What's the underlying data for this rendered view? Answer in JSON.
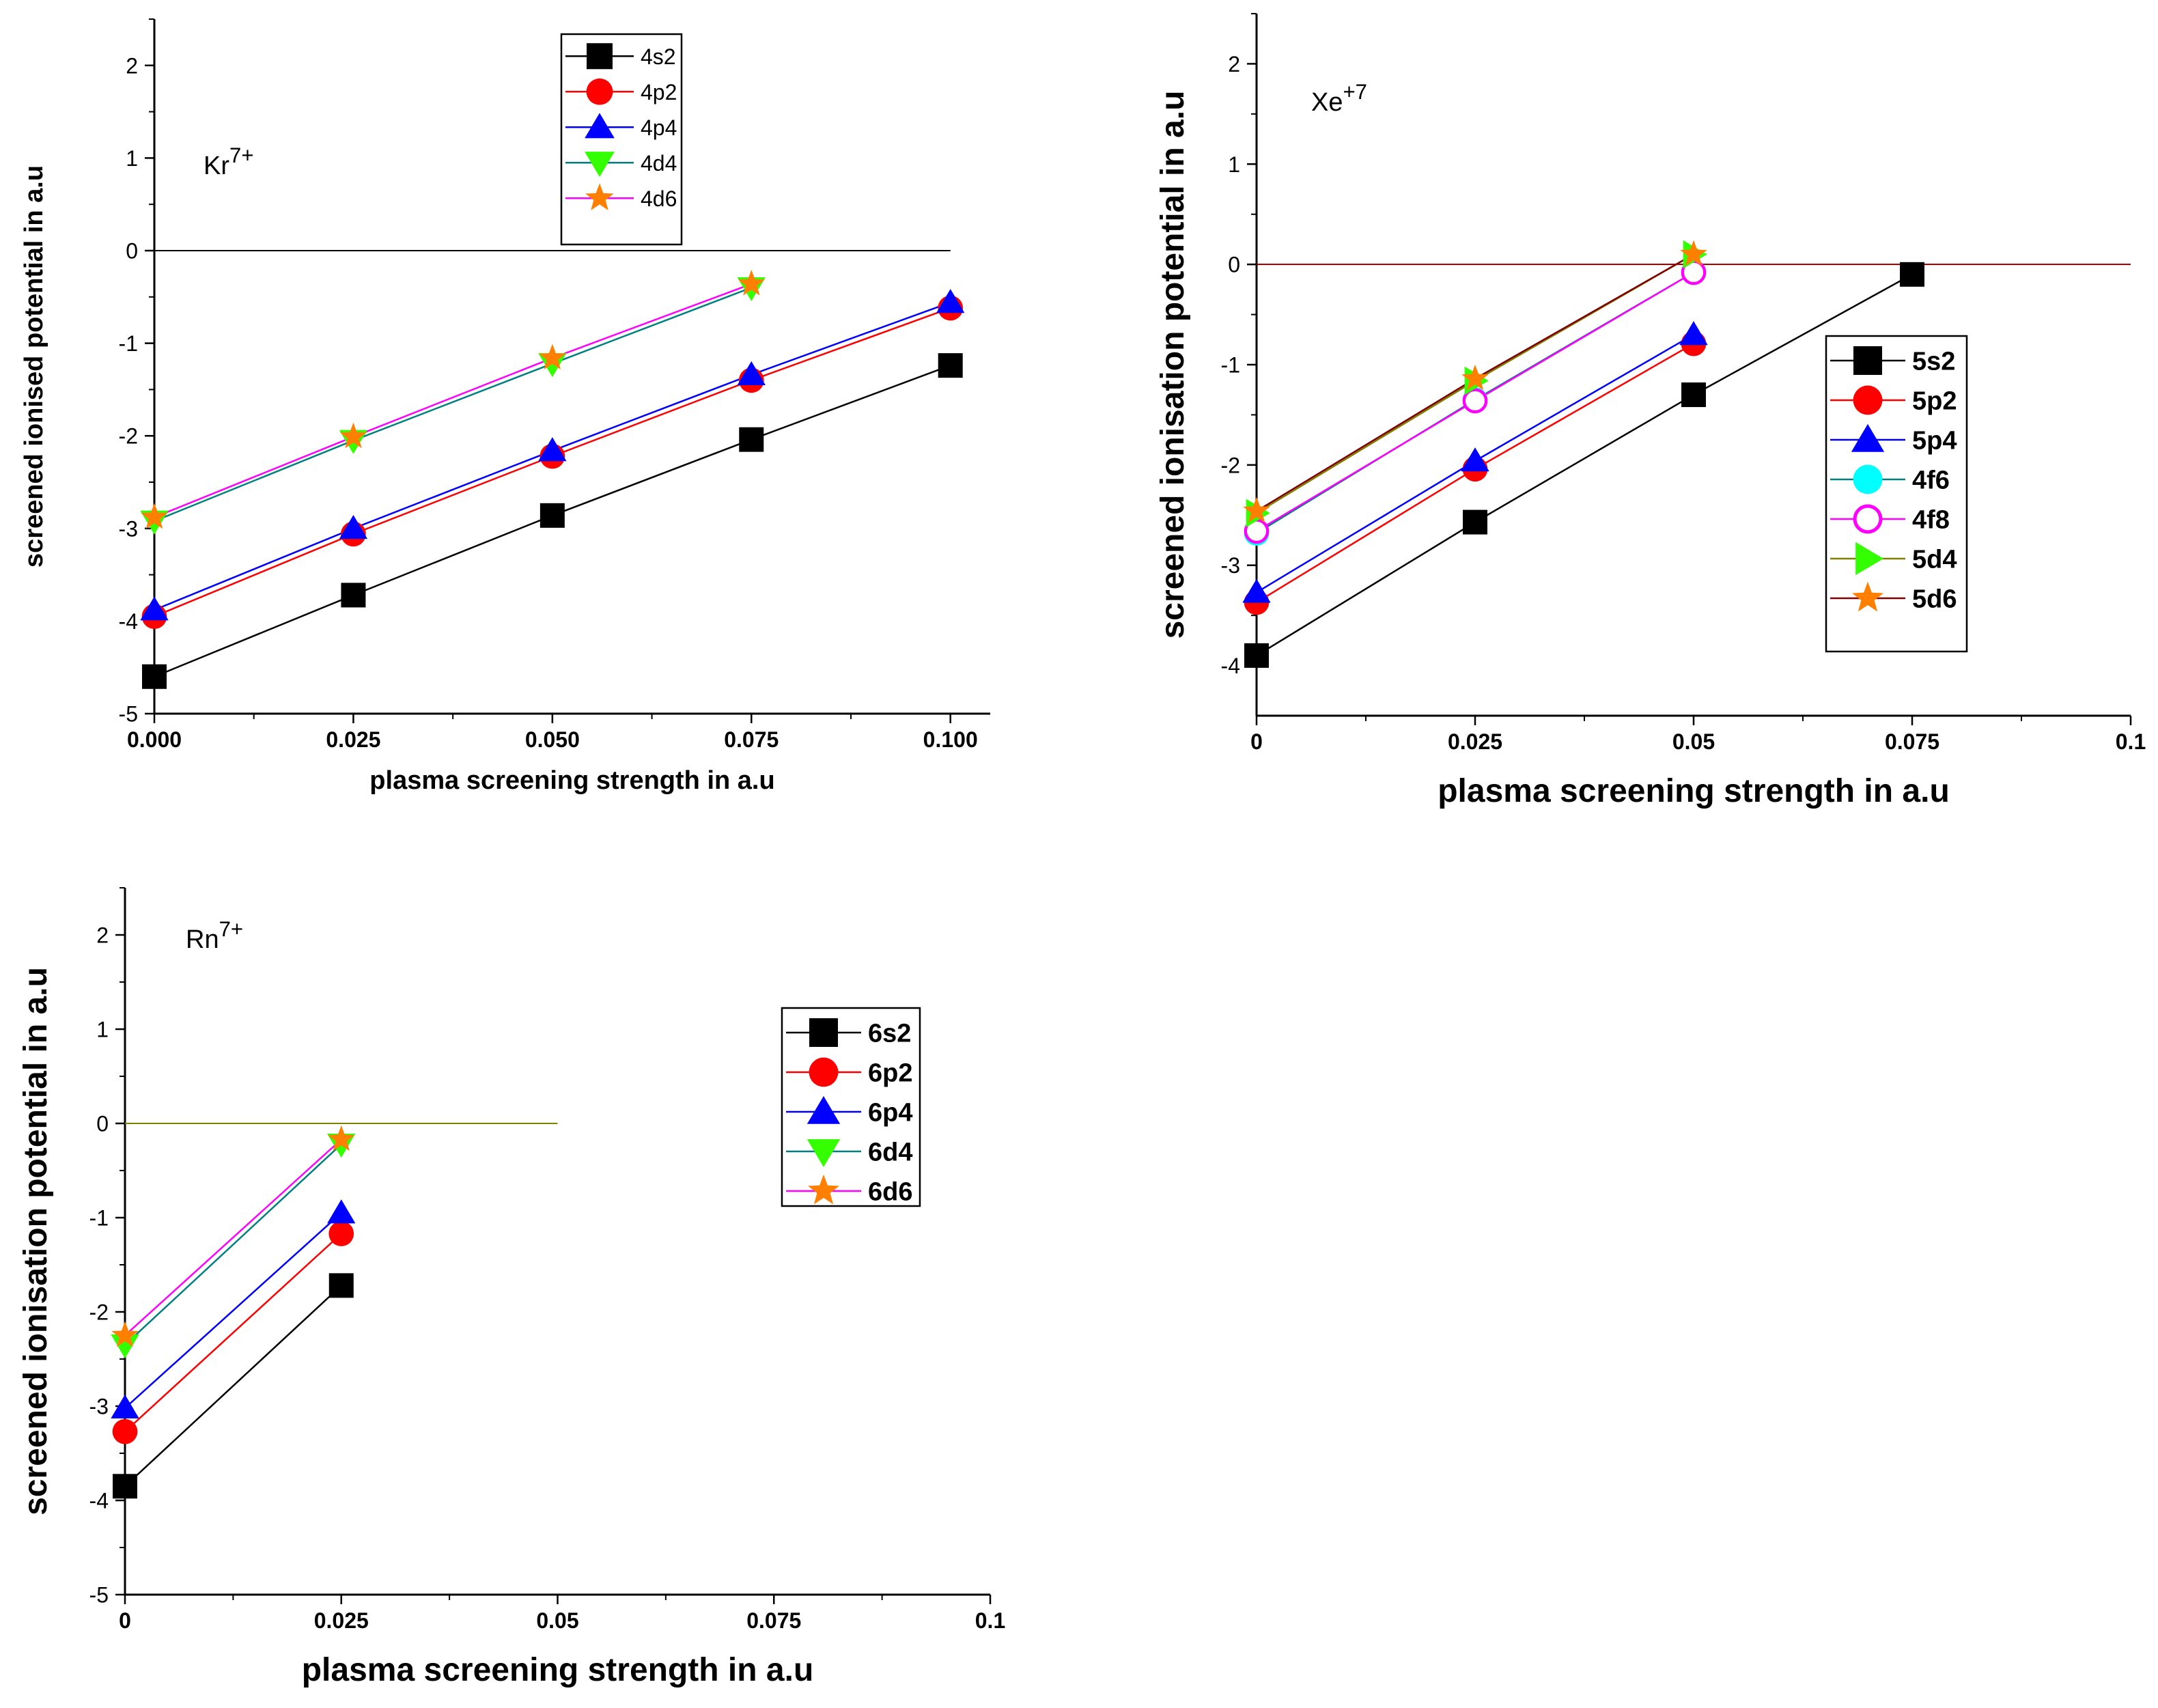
{
  "chart_data": [
    {
      "type": "line",
      "annotation": "Kr",
      "annotation_sup": "7+",
      "xlabel": "plasma screening strength in a.u",
      "ylabel": "screened ionised potential in a.u",
      "xlim": [
        0,
        0.105
      ],
      "ylim": [
        -5,
        2.5
      ],
      "xticks": [
        0,
        0.025,
        0.05,
        0.075,
        0.1
      ],
      "xtick_labels": [
        "0.000",
        "0.025",
        "0.050",
        "0.075",
        "0.100"
      ],
      "yticks": [
        -5,
        -4,
        -3,
        -2,
        -1,
        0,
        1,
        2
      ],
      "ytick_labels": [
        "-5",
        "-4",
        "-3",
        "-2",
        "-1",
        "0",
        "1",
        "2"
      ],
      "zero_line": {
        "color": "#000000",
        "x": [
          0,
          0.1
        ]
      },
      "legend_position": "top-center",
      "series": [
        {
          "name": "4s2",
          "marker": "square",
          "color": "#000000",
          "line_color": "#000000",
          "x": [
            0,
            0.025,
            0.05,
            0.075,
            0.1
          ],
          "y": [
            -4.6,
            -3.72,
            -2.86,
            -2.04,
            -1.24
          ]
        },
        {
          "name": "4p2",
          "marker": "circle",
          "color": "#ff0000",
          "line_color": "#ff0000",
          "x": [
            0,
            0.025,
            0.05,
            0.075,
            0.1
          ],
          "y": [
            -3.95,
            -3.06,
            -2.22,
            -1.4,
            -0.62
          ]
        },
        {
          "name": "4p4",
          "marker": "triangle-up",
          "color": "#0000ff",
          "line_color": "#0000ff",
          "x": [
            0,
            0.025,
            0.05,
            0.075,
            0.1
          ],
          "y": [
            -3.88,
            -3.0,
            -2.16,
            -1.34,
            -0.56
          ]
        },
        {
          "name": "4d4",
          "marker": "triangle-down",
          "color": "#33ff00",
          "line_color": "#008080",
          "x": [
            0,
            0.025,
            0.05,
            0.075
          ],
          "y": [
            -2.92,
            -2.05,
            -1.22,
            -0.4
          ]
        },
        {
          "name": "4d6",
          "marker": "star",
          "color": "#ff8000",
          "line_color": "#ff00ff",
          "x": [
            0,
            0.025,
            0.05,
            0.075
          ],
          "y": [
            -2.88,
            -2.01,
            -1.16,
            -0.36
          ]
        }
      ]
    },
    {
      "type": "line",
      "annotation": "Xe",
      "annotation_sup": "+7",
      "xlabel": "plasma screening strength in a.u",
      "ylabel": "screened ionisation potential in a.u",
      "xlim": [
        0,
        0.1
      ],
      "ylim": [
        -4.5,
        2.5
      ],
      "xticks": [
        0,
        0.025,
        0.05,
        0.075,
        0.1
      ],
      "xtick_labels": [
        "0",
        "0.025",
        "0.05",
        "0.075",
        "0.1"
      ],
      "yticks": [
        -4,
        -3,
        -2,
        -1,
        0,
        1,
        2
      ],
      "ytick_labels": [
        "-4",
        "-3",
        "-2",
        "-1",
        "0",
        "1",
        "2"
      ],
      "zero_line": {
        "color": "#800000",
        "x": [
          0,
          0.1
        ]
      },
      "legend_position": "right-center",
      "series": [
        {
          "name": "5s2",
          "marker": "square",
          "color": "#000000",
          "line_color": "#000000",
          "x": [
            0,
            0.025,
            0.05,
            0.075
          ],
          "y": [
            -3.9,
            -2.57,
            -1.3,
            -0.1
          ]
        },
        {
          "name": "5p2",
          "marker": "circle",
          "color": "#ff0000",
          "line_color": "#ff0000",
          "x": [
            0,
            0.025,
            0.05
          ],
          "y": [
            -3.37,
            -2.04,
            -0.79
          ]
        },
        {
          "name": "5p4",
          "marker": "triangle-up",
          "color": "#0000ff",
          "line_color": "#0000ff",
          "x": [
            0,
            0.025,
            0.05
          ],
          "y": [
            -3.27,
            -1.96,
            -0.7
          ]
        },
        {
          "name": "4f6",
          "marker": "circle",
          "color": "#00ffff",
          "line_color": "#008080",
          "x": [
            0,
            0.025,
            0.05
          ],
          "y": [
            -2.68,
            -1.35,
            -0.08
          ]
        },
        {
          "name": "4f8",
          "marker": "circle-open",
          "color": "#ff00ff",
          "line_color": "#ff00ff",
          "x": [
            0,
            0.025,
            0.05
          ],
          "y": [
            -2.66,
            -1.36,
            -0.08
          ]
        },
        {
          "name": "5d4",
          "marker": "triangle-right",
          "color": "#33ff00",
          "line_color": "#808000",
          "x": [
            0,
            0.025,
            0.05
          ],
          "y": [
            -2.48,
            -1.16,
            0.1
          ]
        },
        {
          "name": "5d6",
          "marker": "star",
          "color": "#ff8000",
          "line_color": "#800000",
          "x": [
            0,
            0.025,
            0.05
          ],
          "y": [
            -2.46,
            -1.14,
            0.1
          ]
        }
      ]
    },
    {
      "type": "line",
      "annotation": "Rn",
      "annotation_sup": "7+",
      "xlabel": "plasma screening strength in a.u",
      "ylabel": "screened ionisation potential in a.u",
      "xlim": [
        0,
        0.1
      ],
      "ylim": [
        -5,
        2.5
      ],
      "xticks": [
        0,
        0.025,
        0.05,
        0.075,
        0.1
      ],
      "xtick_labels": [
        "0",
        "0.025",
        "0.05",
        "0.075",
        "0.1"
      ],
      "yticks": [
        -5,
        -4,
        -3,
        -2,
        -1,
        0,
        1,
        2
      ],
      "ytick_labels": [
        "-5",
        "-4",
        "-3",
        "-2",
        "-1",
        "0",
        "1",
        "2"
      ],
      "zero_line": {
        "color": "#808000",
        "x": [
          0,
          0.05
        ]
      },
      "legend_position": "right-center",
      "series": [
        {
          "name": "6s2",
          "marker": "square",
          "color": "#000000",
          "line_color": "#000000",
          "x": [
            0,
            0.025
          ],
          "y": [
            -3.85,
            -1.72
          ]
        },
        {
          "name": "6p2",
          "marker": "circle",
          "color": "#ff0000",
          "line_color": "#ff0000",
          "x": [
            0,
            0.025
          ],
          "y": [
            -3.27,
            -1.17
          ]
        },
        {
          "name": "6p4",
          "marker": "triangle-up",
          "color": "#0000ff",
          "line_color": "#0000ff",
          "x": [
            0,
            0.025
          ],
          "y": [
            -3.02,
            -0.95
          ]
        },
        {
          "name": "6d4",
          "marker": "triangle-down",
          "color": "#33ff00",
          "line_color": "#008080",
          "x": [
            0,
            0.025
          ],
          "y": [
            -2.35,
            -0.22
          ]
        },
        {
          "name": "6d6",
          "marker": "star",
          "color": "#ff8000",
          "line_color": "#ff00ff",
          "x": [
            0,
            0.025
          ],
          "y": [
            -2.25,
            -0.17
          ]
        }
      ]
    }
  ]
}
